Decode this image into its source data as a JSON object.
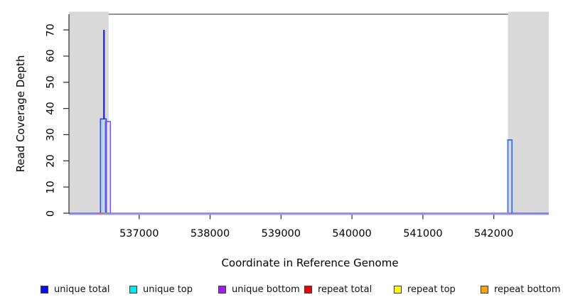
{
  "chart_data": {
    "type": "line",
    "title": "",
    "xlabel": "Coordinate in Reference Genome",
    "ylabel": "Read Coverage Depth",
    "xlim": [
      536010,
      542775
    ],
    "ylim": [
      0,
      76
    ],
    "x_ticks": [
      537000,
      538000,
      539000,
      540000,
      541000,
      542000
    ],
    "y_ticks": [
      0,
      10,
      20,
      30,
      40,
      50,
      60,
      70
    ],
    "grid": false,
    "plot_background": "#ffffff",
    "flank_color": "#d9d9d9",
    "flank_regions": [
      {
        "name": "left-shaded-flank",
        "x1": 536010,
        "x2": 536570
      },
      {
        "name": "right-shaded-flank",
        "x1": 542200,
        "x2": 542775
      }
    ],
    "legend_position": "bottom",
    "legend": [
      {
        "label": "unique total",
        "color": "#0d0dee"
      },
      {
        "label": "unique top",
        "color": "#00e8ee"
      },
      {
        "label": "unique bottom",
        "color": "#a020f0"
      },
      {
        "label": "repeat total",
        "color": "#ee0000"
      },
      {
        "label": "repeat top",
        "color": "#fdfd00"
      },
      {
        "label": "repeat bottom",
        "color": "#f7a500"
      }
    ],
    "series": [
      {
        "name": "unique-total-left-block",
        "stroke": "#2c52e8",
        "width": 1.7,
        "points": [
          [
            536455,
            0
          ],
          [
            536455,
            36
          ],
          [
            536535,
            36
          ],
          [
            536535,
            0
          ]
        ]
      },
      {
        "name": "unique-total-peak-spike",
        "stroke": "#0c10d6",
        "width": 2.0,
        "points": [
          [
            536504,
            36
          ],
          [
            536504,
            70
          ]
        ]
      },
      {
        "name": "unique-top-left-block",
        "stroke": "#9bdcf2",
        "width": 1.4,
        "points": [
          [
            536483,
            0
          ],
          [
            536483,
            35.5
          ],
          [
            536488,
            35.5
          ],
          [
            536488,
            0
          ]
        ]
      },
      {
        "name": "unique-bottom-left-block",
        "stroke": "#7d55ec",
        "width": 1.7,
        "points": [
          [
            536524,
            0
          ],
          [
            536524,
            35
          ],
          [
            536594,
            35
          ],
          [
            536594,
            0
          ]
        ]
      },
      {
        "name": "unique-total-right-block",
        "stroke": "#2e6fe8",
        "width": 1.7,
        "points": [
          [
            542198,
            0
          ],
          [
            542198,
            28
          ],
          [
            542256,
            28
          ],
          [
            542256,
            0
          ]
        ]
      },
      {
        "name": "unique-total-baseline",
        "stroke": "#5050e2",
        "width": 1.2,
        "points": [
          [
            536010,
            0
          ],
          [
            542775,
            0
          ]
        ]
      },
      {
        "name": "unique-bottom-baseline",
        "stroke": "#a090f2",
        "width": 1.4,
        "points": [
          [
            536010,
            -0.45
          ],
          [
            542775,
            -0.45
          ]
        ]
      },
      {
        "name": "repeat-total-left-mark",
        "stroke": "#f05858",
        "width": 1.6,
        "points": [
          [
            536424,
            0
          ],
          [
            536496,
            0
          ]
        ]
      },
      {
        "name": "repeat-top-left-mark",
        "stroke": "#5cb85c",
        "width": 1.6,
        "points": [
          [
            536496,
            0
          ],
          [
            536552,
            0
          ]
        ]
      },
      {
        "name": "repeat-total-right-mark",
        "stroke": "#f05858",
        "width": 1.6,
        "points": [
          [
            542192,
            0
          ],
          [
            542216,
            0
          ]
        ]
      }
    ],
    "peaks": [
      {
        "coordinate": 536500,
        "unique_total": 70,
        "unique_top": 36,
        "unique_bottom": 35
      },
      {
        "coordinate": 542225,
        "unique_total": 28
      }
    ]
  }
}
